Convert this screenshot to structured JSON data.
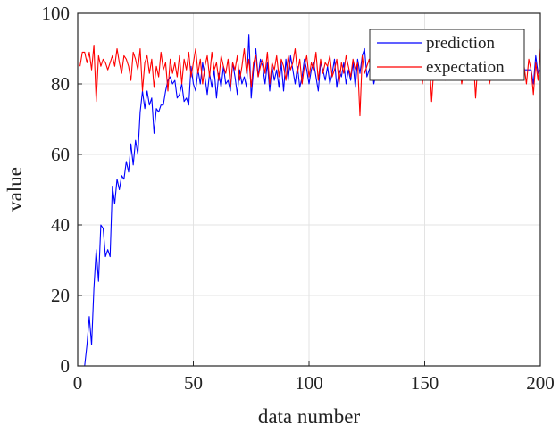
{
  "chart_data": {
    "type": "line",
    "title": "",
    "xlabel": "data number",
    "ylabel": "value",
    "xlim": [
      0,
      200
    ],
    "ylim": [
      0,
      100
    ],
    "x_ticks": [
      0,
      50,
      100,
      150,
      200
    ],
    "y_ticks": [
      0,
      20,
      40,
      60,
      80,
      100
    ],
    "grid": true,
    "legend_position": "top-right",
    "series": [
      {
        "name": "prediction",
        "color": "#0000ff",
        "x": [
          1,
          2,
          3,
          4,
          5,
          6,
          7,
          8,
          9,
          10,
          11,
          12,
          13,
          14,
          15,
          16,
          17,
          18,
          19,
          20,
          21,
          22,
          23,
          24,
          25,
          26,
          27,
          28,
          29,
          30,
          31,
          32,
          33,
          34,
          35,
          36,
          37,
          38,
          39,
          40,
          41,
          42,
          43,
          44,
          45,
          46,
          47,
          48,
          49,
          50,
          51,
          52,
          53,
          54,
          55,
          56,
          57,
          58,
          59,
          60,
          61,
          62,
          63,
          64,
          65,
          66,
          67,
          68,
          69,
          70,
          71,
          72,
          73,
          74,
          75,
          76,
          77,
          78,
          79,
          80,
          81,
          82,
          83,
          84,
          85,
          86,
          87,
          88,
          89,
          90,
          91,
          92,
          93,
          94,
          95,
          96,
          97,
          98,
          99,
          100,
          101,
          102,
          103,
          104,
          105,
          106,
          107,
          108,
          109,
          110,
          111,
          112,
          113,
          114,
          115,
          116,
          117,
          118,
          119,
          120,
          121,
          122,
          123,
          124,
          125,
          126,
          127,
          128,
          129,
          130,
          131,
          132,
          133,
          134,
          135,
          136,
          137,
          138,
          139,
          140,
          141,
          142,
          143,
          144,
          145,
          146,
          147,
          148,
          149,
          150,
          151,
          152,
          153,
          154,
          155,
          156,
          157,
          158,
          159,
          160,
          161,
          162,
          163,
          164,
          165,
          166,
          167,
          168,
          169,
          170,
          171,
          172,
          173,
          174,
          175,
          176,
          177,
          178,
          179,
          180,
          181,
          182,
          183,
          184,
          185,
          186,
          187,
          188,
          189,
          190,
          191,
          192,
          193,
          194,
          195,
          196,
          197,
          198,
          199,
          200
        ],
        "y": [
          0,
          0,
          0,
          6,
          14,
          6,
          22,
          33,
          24,
          40,
          39,
          31,
          33,
          31,
          51,
          46,
          53,
          50,
          54,
          53,
          58,
          55,
          63,
          57,
          64,
          60,
          72,
          78,
          73,
          78,
          74,
          76,
          66,
          73,
          72,
          74,
          74,
          78,
          81,
          82,
          80,
          81,
          76,
          77,
          80,
          75,
          76,
          74,
          85,
          80,
          78,
          84,
          80,
          86,
          82,
          77,
          83,
          79,
          84,
          76,
          83,
          79,
          85,
          80,
          81,
          78,
          86,
          82,
          77,
          84,
          80,
          82,
          79,
          94,
          76,
          84,
          90,
          82,
          87,
          85,
          80,
          86,
          78,
          85,
          81,
          84,
          79,
          86,
          78,
          87,
          81,
          88,
          84,
          80,
          85,
          79,
          82,
          87,
          84,
          80,
          84,
          86,
          82,
          78,
          86,
          84,
          81,
          85,
          80,
          83,
          87,
          79,
          84,
          82,
          86,
          80,
          84,
          81,
          86,
          79,
          87,
          83,
          88,
          90,
          82,
          84,
          86,
          80,
          83,
          84,
          84,
          84,
          84,
          84,
          84,
          84,
          84,
          84,
          84,
          84,
          84,
          84,
          84,
          84,
          84,
          84,
          84,
          84,
          84,
          84,
          84,
          84,
          84,
          84,
          84,
          84,
          84,
          84,
          84,
          84,
          84,
          84,
          84,
          84,
          84,
          84,
          84,
          84,
          84,
          84,
          84,
          84,
          84,
          84,
          84,
          84,
          84,
          84,
          84,
          84,
          84,
          84,
          84,
          84,
          84,
          84,
          84,
          84,
          84,
          84,
          84,
          84,
          84,
          84,
          84,
          84,
          80,
          88,
          83,
          84
        ]
      },
      {
        "name": "expectation",
        "color": "#ff0000",
        "x": [
          1,
          2,
          3,
          4,
          5,
          6,
          7,
          8,
          9,
          10,
          11,
          12,
          13,
          14,
          15,
          16,
          17,
          18,
          19,
          20,
          21,
          22,
          23,
          24,
          25,
          26,
          27,
          28,
          29,
          30,
          31,
          32,
          33,
          34,
          35,
          36,
          37,
          38,
          39,
          40,
          41,
          42,
          43,
          44,
          45,
          46,
          47,
          48,
          49,
          50,
          51,
          52,
          53,
          54,
          55,
          56,
          57,
          58,
          59,
          60,
          61,
          62,
          63,
          64,
          65,
          66,
          67,
          68,
          69,
          70,
          71,
          72,
          73,
          74,
          75,
          76,
          77,
          78,
          79,
          80,
          81,
          82,
          83,
          84,
          85,
          86,
          87,
          88,
          89,
          90,
          91,
          92,
          93,
          94,
          95,
          96,
          97,
          98,
          99,
          100,
          101,
          102,
          103,
          104,
          105,
          106,
          107,
          108,
          109,
          110,
          111,
          112,
          113,
          114,
          115,
          116,
          117,
          118,
          119,
          120,
          121,
          122,
          123,
          124,
          125,
          126,
          127,
          128,
          129,
          130,
          131,
          132,
          133,
          134,
          135,
          136,
          137,
          138,
          139,
          140,
          141,
          142,
          143,
          144,
          145,
          146,
          147,
          148,
          149,
          150,
          151,
          152,
          153,
          154,
          155,
          156,
          157,
          158,
          159,
          160,
          161,
          162,
          163,
          164,
          165,
          166,
          167,
          168,
          169,
          170,
          171,
          172,
          173,
          174,
          175,
          176,
          177,
          178,
          179,
          180,
          181,
          182,
          183,
          184,
          185,
          186,
          187,
          188,
          189,
          190,
          191,
          192,
          193,
          194,
          195,
          196,
          197,
          198,
          199,
          200
        ],
        "y": [
          85,
          89,
          89,
          86,
          89,
          84,
          91,
          75,
          88,
          85,
          87,
          86,
          84,
          86,
          88,
          85,
          90,
          86,
          83,
          88,
          87,
          85,
          81,
          89,
          87,
          84,
          90,
          78,
          86,
          88,
          83,
          87,
          79,
          85,
          82,
          89,
          84,
          86,
          78,
          87,
          83,
          86,
          82,
          88,
          80,
          87,
          84,
          89,
          82,
          86,
          90,
          83,
          87,
          80,
          85,
          88,
          82,
          89,
          84,
          86,
          81,
          88,
          85,
          83,
          87,
          79,
          86,
          84,
          88,
          81,
          85,
          90,
          83,
          87,
          79,
          86,
          88,
          82,
          85,
          87,
          83,
          89,
          80,
          86,
          84,
          88,
          82,
          87,
          85,
          81,
          88,
          84,
          86,
          90,
          83,
          87,
          80,
          85,
          88,
          82,
          86,
          84,
          89,
          81,
          87,
          83,
          86,
          85,
          88,
          82,
          84,
          87,
          80,
          86,
          83,
          88,
          85,
          82,
          87,
          84,
          86,
          71,
          88,
          83,
          85,
          87,
          82,
          89,
          84,
          86,
          81,
          88,
          85,
          83,
          87,
          82,
          86,
          84,
          88,
          81,
          85,
          87,
          83,
          86,
          89,
          82,
          84,
          87,
          80,
          86,
          83,
          88,
          75,
          85,
          82,
          87,
          84,
          86,
          81,
          89,
          83,
          85,
          88,
          82,
          86,
          80,
          84,
          87,
          83,
          85,
          88,
          76,
          86,
          84,
          82,
          87,
          85,
          80,
          83,
          88,
          84,
          86,
          82,
          87,
          81,
          85,
          89,
          83,
          86,
          84,
          82,
          88,
          85,
          80,
          87,
          84,
          77,
          86,
          81,
          90
        ]
      }
    ]
  }
}
